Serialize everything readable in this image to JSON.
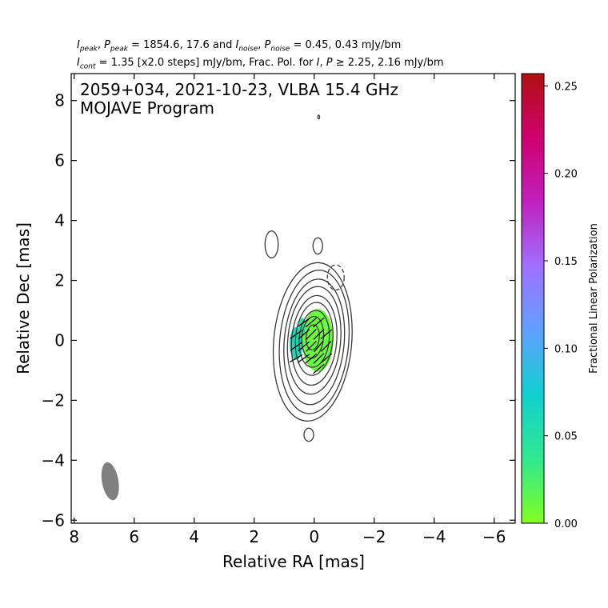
{
  "header": {
    "line1": {
      "i_peak": "I",
      "i_peak_sub": "peak",
      "p_peak": "P",
      "p_peak_sub": "peak",
      "peak_values": " = 1854.6, 17.6 and ",
      "i_noise": "I",
      "i_noise_sub": "noise",
      "p_noise": "P",
      "p_noise_sub": "noise",
      "noise_values": " = 0.45, 0.43 mJy/bm"
    },
    "line2": {
      "i_cont": "I",
      "i_cont_sub": "cont",
      "cont_text": " = 1.35 [x2.0 steps] mJy/bm, Frac. Pol. for ",
      "i_sym": "I",
      "p_sym": "P",
      "threshold_text": " ≥  2.25, 2.16 mJy/bm"
    }
  },
  "chart_data": {
    "type": "contour",
    "annotation_line1": "2059+034, 2021-10-23, VLBA 15.4 GHz",
    "annotation_line2": "MOJAVE Program",
    "xlabel": "Relative RA [mas]",
    "ylabel": "Relative Dec [mas]",
    "xlim": [
      8.1,
      -6.7
    ],
    "ylim": [
      -6.1,
      8.9
    ],
    "xticks": [
      8,
      6,
      4,
      2,
      0,
      -2,
      -4,
      -6
    ],
    "yticks": [
      -6,
      -4,
      -2,
      0,
      2,
      4,
      6,
      8
    ],
    "xtick_labels": [
      "8",
      "6",
      "4",
      "2",
      "0",
      "−2",
      "−4",
      "−6"
    ],
    "ytick_labels": [
      "−6",
      "−4",
      "−2",
      "0",
      "2",
      "4",
      "6",
      "8"
    ],
    "colorbar": {
      "label": "Fractional Linear Polarization",
      "range": [
        0.0,
        0.257
      ],
      "ticks": [
        0.0,
        0.05,
        0.1,
        0.15,
        0.2,
        0.25
      ],
      "tick_labels": [
        "0.00",
        "0.05",
        "0.10",
        "0.15",
        "0.20",
        "0.25"
      ],
      "colors": [
        "#80ff20",
        "#30e890",
        "#10d0d0",
        "#60a0ff",
        "#a070ff",
        "#c020c0",
        "#d00070",
        "#b01010"
      ]
    },
    "beam": {
      "x": 6.8,
      "y": -4.7,
      "major_mas": 1.28,
      "minor_mas": 0.55,
      "pa_deg": -10,
      "color": "#808080"
    },
    "contours": [
      {
        "cx": 0.05,
        "cy": -0.05,
        "rx": 1.3,
        "ry": 2.65,
        "rot": 5
      },
      {
        "cx": 0.0,
        "cy": -0.05,
        "rx": 1.15,
        "ry": 2.4,
        "rot": 5
      },
      {
        "cx": 0.0,
        "cy": -0.05,
        "rx": 1.0,
        "ry": 2.1,
        "rot": 5
      },
      {
        "cx": 0.0,
        "cy": 0.0,
        "rx": 0.88,
        "ry": 1.8,
        "rot": 5
      },
      {
        "cx": 0.0,
        "cy": 0.0,
        "rx": 0.75,
        "ry": 1.5,
        "rot": 5
      },
      {
        "cx": 0.0,
        "cy": 0.05,
        "rx": 0.62,
        "ry": 1.22,
        "rot": 5
      },
      {
        "cx": 0.0,
        "cy": 0.05,
        "rx": 0.5,
        "ry": 0.95,
        "rot": 5
      },
      {
        "cx": 0.05,
        "cy": 0.1,
        "rx": 0.36,
        "ry": 0.7,
        "rot": 5
      },
      {
        "cx": 0.05,
        "cy": 0.1,
        "rx": 0.22,
        "ry": 0.42,
        "rot": 5
      }
    ],
    "islands": [
      {
        "cx": 1.42,
        "cy": 3.2,
        "rx": 0.22,
        "ry": 0.45,
        "dashed": false
      },
      {
        "cx": -0.12,
        "cy": 3.15,
        "rx": 0.16,
        "ry": 0.27,
        "dashed": false
      },
      {
        "cx": -0.72,
        "cy": 2.1,
        "rx": 0.28,
        "ry": 0.42,
        "dashed": true
      },
      {
        "cx": 0.18,
        "cy": -3.15,
        "rx": 0.16,
        "ry": 0.22,
        "dashed": false
      },
      {
        "cx": -0.15,
        "cy": 7.45,
        "rx": 0.03,
        "ry": 0.06,
        "dashed": false
      }
    ],
    "fracpol_regions": [
      {
        "cx": -0.12,
        "cy": 0.0,
        "rx": 0.52,
        "ry": 1.05,
        "value": 0.01
      },
      {
        "cx": 0.6,
        "cy": -0.1,
        "rx": 0.22,
        "ry": 0.55,
        "value": 0.06
      },
      {
        "cx": 0.4,
        "cy": 0.45,
        "rx": 0.12,
        "ry": 0.3,
        "value": 0.045
      }
    ],
    "evpa_vectors": [
      {
        "x": 0.6,
        "y": 0.2,
        "angle": 35
      },
      {
        "x": 0.6,
        "y": -0.2,
        "angle": 35
      },
      {
        "x": 0.6,
        "y": -0.6,
        "angle": 30
      },
      {
        "x": 0.35,
        "y": 0.6,
        "angle": 35
      },
      {
        "x": 0.35,
        "y": 0.2,
        "angle": 40
      },
      {
        "x": 0.35,
        "y": -0.2,
        "angle": 40
      },
      {
        "x": 0.35,
        "y": -0.6,
        "angle": 35
      },
      {
        "x": 0.1,
        "y": 0.6,
        "angle": 40
      },
      {
        "x": 0.1,
        "y": 0.2,
        "angle": 45
      },
      {
        "x": 0.1,
        "y": -0.2,
        "angle": 45
      },
      {
        "x": 0.1,
        "y": -0.6,
        "angle": 40
      },
      {
        "x": -0.15,
        "y": 0.6,
        "angle": 40
      },
      {
        "x": -0.15,
        "y": 0.2,
        "angle": 45
      },
      {
        "x": -0.15,
        "y": -0.2,
        "angle": 50
      },
      {
        "x": -0.15,
        "y": -0.6,
        "angle": 45
      },
      {
        "x": -0.15,
        "y": -0.95,
        "angle": 40
      },
      {
        "x": -0.4,
        "y": 0.2,
        "angle": 40
      },
      {
        "x": -0.4,
        "y": -0.2,
        "angle": 45
      },
      {
        "x": -0.4,
        "y": -0.6,
        "angle": 40
      }
    ]
  }
}
